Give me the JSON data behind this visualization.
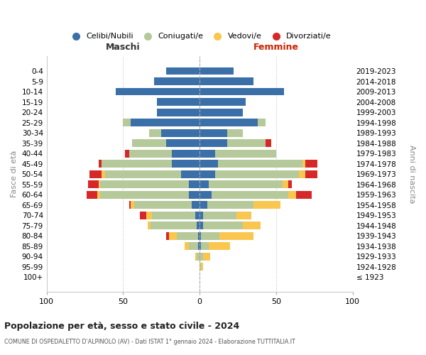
{
  "age_groups": [
    "100+",
    "95-99",
    "90-94",
    "85-89",
    "80-84",
    "75-79",
    "70-74",
    "65-69",
    "60-64",
    "55-59",
    "50-54",
    "45-49",
    "40-44",
    "35-39",
    "30-34",
    "25-29",
    "20-24",
    "15-19",
    "10-14",
    "5-9",
    "0-4"
  ],
  "birth_years": [
    "≤ 1923",
    "1924-1928",
    "1929-1933",
    "1934-1938",
    "1939-1943",
    "1944-1948",
    "1949-1953",
    "1954-1958",
    "1959-1963",
    "1964-1968",
    "1969-1973",
    "1974-1978",
    "1979-1983",
    "1984-1988",
    "1989-1993",
    "1994-1998",
    "1999-2003",
    "2004-2008",
    "2009-2013",
    "2014-2018",
    "2019-2023"
  ],
  "males": {
    "celibi": [
      0,
      0,
      0,
      1,
      1,
      2,
      3,
      5,
      7,
      7,
      12,
      18,
      18,
      22,
      25,
      45,
      28,
      28,
      55,
      30,
      22
    ],
    "coniugati": [
      0,
      0,
      2,
      6,
      14,
      30,
      28,
      38,
      58,
      58,
      50,
      46,
      28,
      22,
      8,
      5,
      0,
      0,
      0,
      0,
      0
    ],
    "vedovi": [
      0,
      0,
      1,
      3,
      5,
      2,
      4,
      2,
      2,
      1,
      2,
      0,
      0,
      0,
      0,
      0,
      0,
      0,
      0,
      0,
      0
    ],
    "divorziati": [
      0,
      0,
      0,
      0,
      2,
      0,
      4,
      1,
      7,
      7,
      8,
      2,
      3,
      0,
      0,
      0,
      0,
      0,
      0,
      0,
      0
    ]
  },
  "females": {
    "nubili": [
      0,
      0,
      0,
      1,
      1,
      2,
      2,
      5,
      8,
      6,
      10,
      12,
      10,
      18,
      18,
      38,
      28,
      30,
      55,
      35,
      22
    ],
    "coniugate": [
      0,
      1,
      2,
      5,
      12,
      26,
      22,
      30,
      50,
      48,
      55,
      55,
      40,
      25,
      10,
      5,
      0,
      0,
      0,
      0,
      0
    ],
    "vedove": [
      0,
      1,
      5,
      14,
      22,
      12,
      10,
      18,
      5,
      4,
      4,
      2,
      0,
      0,
      0,
      0,
      0,
      0,
      0,
      0,
      0
    ],
    "divorziate": [
      0,
      0,
      0,
      0,
      0,
      0,
      0,
      0,
      10,
      2,
      8,
      8,
      0,
      4,
      0,
      0,
      0,
      0,
      0,
      0,
      0
    ]
  },
  "colors": {
    "celibi_nubili": "#3a6fa8",
    "coniugati": "#b5c99a",
    "vedovi": "#f9c74f",
    "divorziati": "#d62828"
  },
  "title": "Popolazione per età, sesso e stato civile - 2024",
  "subtitle": "COMUNE DI OSPEDALETTO D'ALPINOLO (AV) - Dati ISTAT 1° gennaio 2024 - Elaborazione TUTTITALIA.IT",
  "xlabel_left": "Maschi",
  "xlabel_right": "Femmine",
  "ylabel_left": "Fasce di età",
  "ylabel_right": "Anni di nascita",
  "xlim": 100,
  "legend_labels": [
    "Celibi/Nubili",
    "Coniugati/e",
    "Vedovi/e",
    "Divorziati/e"
  ],
  "bg_color": "#ffffff",
  "grid_color": "#cccccc"
}
